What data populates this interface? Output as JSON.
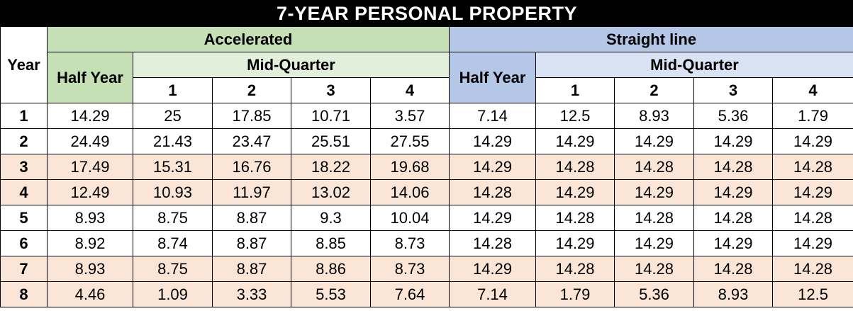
{
  "title": "7-YEAR PERSONAL PROPERTY",
  "headers": {
    "year": "Year",
    "accelerated": "Accelerated",
    "straight_line": "Straight line",
    "half_year": "Half Year",
    "mid_quarter": "Mid-Quarter",
    "quarters": [
      "1",
      "2",
      "3",
      "4"
    ]
  },
  "rows": [
    {
      "year": "1",
      "values": [
        "14.29",
        "25",
        "17.85",
        "10.71",
        "3.57",
        "7.14",
        "12.5",
        "8.93",
        "5.36",
        "1.79"
      ]
    },
    {
      "year": "2",
      "values": [
        "24.49",
        "21.43",
        "23.47",
        "25.51",
        "27.55",
        "14.29",
        "14.29",
        "14.29",
        "14.29",
        "14.29"
      ]
    },
    {
      "year": "3",
      "values": [
        "17.49",
        "15.31",
        "16.76",
        "18.22",
        "19.68",
        "14.29",
        "14.28",
        "14.28",
        "14.28",
        "14.28"
      ]
    },
    {
      "year": "4",
      "values": [
        "12.49",
        "10.93",
        "11.97",
        "13.02",
        "14.06",
        "14.28",
        "14.29",
        "14.29",
        "14.29",
        "14.29"
      ]
    },
    {
      "year": "5",
      "values": [
        "8.93",
        "8.75",
        "8.87",
        "9.3",
        "10.04",
        "14.29",
        "14.28",
        "14.28",
        "14.28",
        "14.28"
      ]
    },
    {
      "year": "6",
      "values": [
        "8.92",
        "8.74",
        "8.87",
        "8.85",
        "8.73",
        "14.28",
        "14.29",
        "14.29",
        "14.29",
        "14.29"
      ]
    },
    {
      "year": "7",
      "values": [
        "8.93",
        "8.75",
        "8.87",
        "8.86",
        "8.73",
        "14.29",
        "14.28",
        "14.28",
        "14.28",
        "14.28"
      ]
    },
    {
      "year": "8",
      "values": [
        "4.46",
        "1.09",
        "3.33",
        "5.53",
        "7.64",
        "7.14",
        "1.79",
        "5.36",
        "8.93",
        "12.5"
      ]
    }
  ],
  "colors": {
    "title_bg": "#000000",
    "accelerated_bg": "#c5e0b4",
    "accelerated_mq_bg": "#e2efda",
    "straight_line_bg": "#b4c7e7",
    "straight_line_mq_bg": "#dae3f3",
    "highlight_row_bg": "#fbe5d6"
  }
}
